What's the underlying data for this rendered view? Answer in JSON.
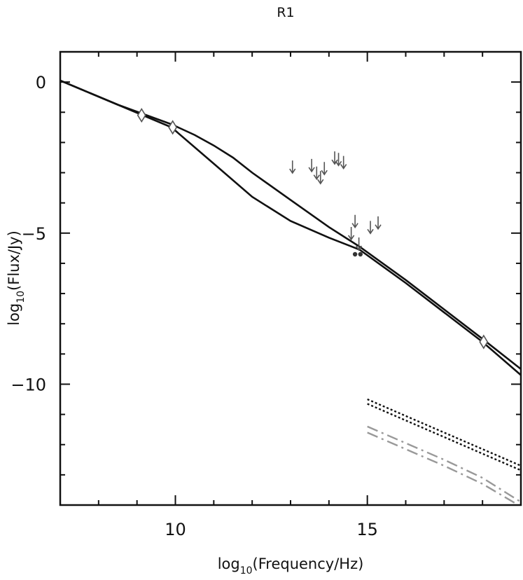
{
  "chart_data": {
    "type": "line",
    "title": "R1",
    "xlabel": {
      "prefix": "log",
      "sub": "10",
      "suffix": "(Frequency/Hz)"
    },
    "ylabel": {
      "prefix": "log",
      "sub": "10",
      "suffix": "(Flux/Jy)"
    },
    "xlim": [
      7,
      19
    ],
    "ylim": [
      -14,
      1
    ],
    "x_ticks": [
      10,
      15
    ],
    "x_tick_labels": [
      "10",
      "15"
    ],
    "x_minor_ticks": [
      8,
      9,
      11,
      12,
      13,
      14,
      16,
      17,
      18
    ],
    "y_ticks": [
      0,
      -5,
      -10
    ],
    "y_tick_labels": [
      "0",
      "−5",
      "−10"
    ],
    "y_minor_ticks": [
      -1,
      -2,
      -3,
      -4,
      -6,
      -7,
      -8,
      -9,
      -11,
      -12,
      -13
    ],
    "colors": {
      "model": "#111111",
      "markers": "#555555",
      "components": "#999999"
    },
    "series": [
      {
        "style": "solid",
        "color": "#111111",
        "x": [
          7.0,
          8.5,
          9.9,
          11.0,
          12.0,
          13.0,
          14.0,
          14.8,
          16.0,
          18.0,
          19.0
        ],
        "y": [
          0.05,
          -0.75,
          -1.5,
          -2.7,
          -3.8,
          -4.6,
          -5.15,
          -5.55,
          -6.65,
          -8.6,
          -9.7
        ]
      },
      {
        "style": "solid",
        "color": "#111111",
        "x": [
          7.0,
          8.5,
          9.9,
          10.5,
          11.0,
          11.5,
          12.0,
          13.0,
          14.0,
          14.8,
          16.0,
          18.0,
          19.0
        ],
        "y": [
          0.05,
          -0.75,
          -1.4,
          -1.75,
          -2.1,
          -2.5,
          -3.0,
          -3.9,
          -4.8,
          -5.45,
          -6.55,
          -8.5,
          -9.5
        ]
      },
      {
        "style": "dotted",
        "color": "#111111",
        "x": [
          15.0,
          16.0,
          17.0,
          18.0,
          19.0
        ],
        "y": [
          -10.5,
          -11.05,
          -11.6,
          -12.15,
          -12.7
        ]
      },
      {
        "style": "dotted",
        "color": "#111111",
        "x": [
          15.0,
          16.0,
          17.0,
          18.0,
          19.0
        ],
        "y": [
          -10.65,
          -11.2,
          -11.75,
          -12.3,
          -12.85
        ]
      },
      {
        "style": "dashdot",
        "color": "#999999",
        "x": [
          15.0,
          16.0,
          17.0,
          18.0,
          19.0
        ],
        "y": [
          -11.4,
          -11.95,
          -12.5,
          -13.1,
          -13.9
        ]
      },
      {
        "style": "dashdot",
        "color": "#999999",
        "x": [
          15.0,
          16.0,
          17.0,
          18.0,
          19.0
        ],
        "y": [
          -11.6,
          -12.15,
          -12.7,
          -13.3,
          -14.05
        ]
      }
    ],
    "diamonds": [
      {
        "x": 9.12,
        "y": -1.1
      },
      {
        "x": 9.93,
        "y": -1.5
      },
      {
        "x": 18.03,
        "y": -8.6
      }
    ],
    "detections": [
      {
        "x": 14.68,
        "y": -5.7
      },
      {
        "x": 14.82,
        "y": -5.7
      }
    ],
    "upper_limits": [
      {
        "x": 13.05,
        "y": -2.85
      },
      {
        "x": 13.55,
        "y": -2.8
      },
      {
        "x": 13.68,
        "y": -3.05
      },
      {
        "x": 13.78,
        "y": -3.2
      },
      {
        "x": 13.88,
        "y": -2.9
      },
      {
        "x": 14.15,
        "y": -2.55
      },
      {
        "x": 14.25,
        "y": -2.6
      },
      {
        "x": 14.38,
        "y": -2.7
      },
      {
        "x": 14.58,
        "y": -5.05
      },
      {
        "x": 14.68,
        "y": -4.65
      },
      {
        "x": 14.78,
        "y": -5.4
      },
      {
        "x": 15.08,
        "y": -4.85
      },
      {
        "x": 15.28,
        "y": -4.7
      }
    ]
  }
}
